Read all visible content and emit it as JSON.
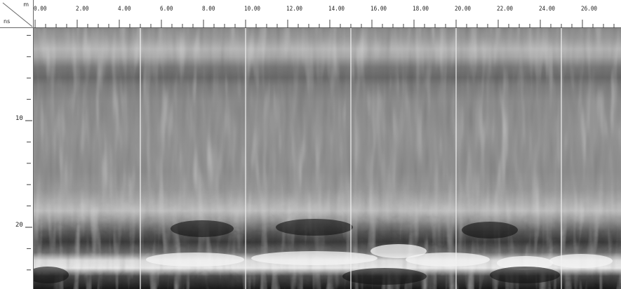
{
  "axes": {
    "x_unit": "m",
    "y_unit": "ns",
    "x_labels": [
      "0.00",
      "2.00",
      "4.00",
      "6.00",
      "8.00",
      "10.00",
      "12.00",
      "14.00",
      "16.00",
      "18.00",
      "20.00",
      "22.00",
      "24.00",
      "26.00",
      "2"
    ],
    "y_labels": [
      "10",
      "20"
    ],
    "x_range": [
      0,
      28
    ],
    "y_range": [
      0,
      25
    ],
    "x_major_step": 2,
    "y_tick_step": 2
  },
  "profile": {
    "section_marker_positions_m": [
      5,
      10,
      15,
      20,
      25
    ],
    "colormap": "grayscale"
  },
  "colors": {
    "marker": "#f2f2f2",
    "axis_line": "#666666",
    "background": "#ffffff"
  }
}
